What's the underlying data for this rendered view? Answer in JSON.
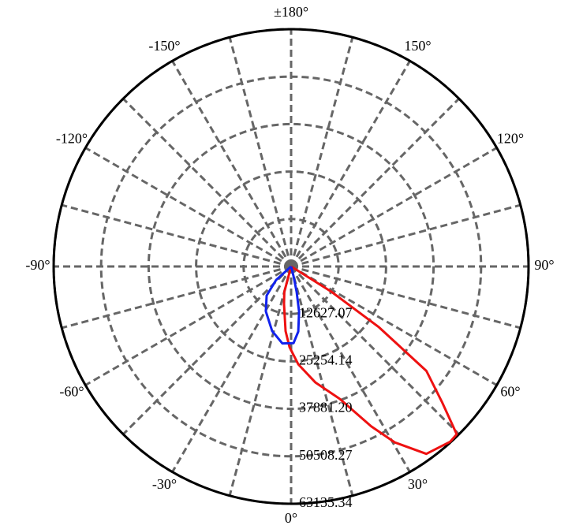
{
  "chart_data": {
    "type": "polar",
    "rlim": [
      0,
      63135.34
    ],
    "rticks": [
      12627.07,
      25254.14,
      {
        "value": 37881.2,
        "label": "37881.20"
      },
      50508.27,
      63135.34
    ],
    "thetaticks": [
      {
        "value": 0,
        "label": "0°"
      },
      {
        "value": 30,
        "label": "30°"
      },
      {
        "value": 60,
        "label": "60°"
      },
      {
        "value": 90,
        "label": "90°"
      },
      {
        "value": 120,
        "label": "120°"
      },
      {
        "value": 150,
        "label": "150°"
      },
      {
        "value": 180,
        "label": "±180°"
      },
      {
        "value": -150,
        "label": "-150°"
      },
      {
        "value": -120,
        "label": "-120°"
      },
      {
        "value": -90,
        "label": "-90°"
      },
      {
        "value": -60,
        "label": "-60°"
      },
      {
        "value": -30,
        "label": "-30°"
      }
    ],
    "spoke_step": 15,
    "grid": true,
    "series": [
      {
        "color": "#ee1111",
        "theta": [
          -30,
          -15,
          -10.8,
          -4.9,
          -1.1,
          4.2,
          11.9,
          20.1,
          26.6,
          30.5,
          35.8,
          42.2,
          44.6,
          48,
          52.3,
          55.3,
          57.9,
          58,
          60
        ],
        "values": [
          0,
          7000,
          10100,
          17260,
          21470,
          26100,
          31570,
          37460,
          47560,
          54300,
          61460,
          62940,
          62700,
          54090,
          45460,
          28410,
          12630,
          4000,
          0
        ]
      },
      {
        "color": "#1122ee",
        "theta": [
          -60,
          -48,
          -40,
          -29.3,
          -16.3,
          -6.5,
          1.8,
          6.3,
          10,
          12.3,
          14,
          20
        ],
        "values": [
          0,
          5370,
          10100,
          13700,
          17900,
          20600,
          20400,
          17400,
          12200,
          6900,
          2600,
          0
        ]
      }
    ]
  }
}
